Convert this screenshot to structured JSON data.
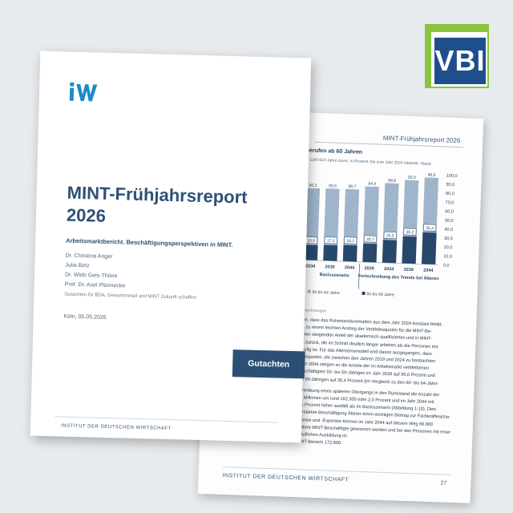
{
  "logo": {
    "text": "VBI",
    "colors": {
      "green": "#8bc53f",
      "blue": "#1f4e8c"
    }
  },
  "front_page": {
    "brand": "iW",
    "title_line1": "MINT-Frühjahrsreport",
    "title_line2": "2026",
    "subtitle": "Arbeitsmarktbericht. Beschäftigungsperspektiven in MINT.",
    "authors": [
      "Dr. Christina Anger",
      "Julia Betz",
      "Dr. Wido Geis-Thöne",
      "Prof. Dr. Axel Plünnecke"
    ],
    "commissioned": "Gutachten für BDA, Gesamtmetall und MINT Zukunft schaffen",
    "date": "Köln, 05.05.2026",
    "badge": "Gutachten",
    "footer": "INSTITUT DER DEUTSCHEN WIRTSCHAFT",
    "colors": {
      "accent": "#2c5075",
      "brand": "#1a8bc7"
    }
  },
  "back_page": {
    "header": "MINT-Frühjahrsreport 2026",
    "chart_title": "berufen ab 60 Jahren",
    "chart_subtitle": "er Zahl fünf Jahre zuvor, in Prozent, bis zum Jahr 2024 Istwerte, Stand",
    "source": "Berechnungen",
    "text_lines": [
      "gen, dass das Ruhestandsverhalten aus dem Jahr 2024 konstant bleibt.",
      "es zu einem leichten Anstieg der Verbleibsquoten für die MINT-Be-",
      "einen steigenden Anteil der akademisch qualifizierten und in MINT-",
      "en zurück, die im Schnitt deutlich länger arbeiten als die Personen mit",
      "häufig ist. Für das Alterseinsmodell wird davon ausgegangen, dass",
      "leibsquoten, die zwischen den Jahren 2019 und 2024 zu beobachten",
      "Jahr 2044 steigen so die Anteile der im Arbeitsmarkt verbleibenen",
      "Beschäftigten 55- bis 59-Jährigen im Jahr 2039 auf 96,6 Prozent und",
      "bis 69-Jährigen auf 35,4 Prozent (im Vergleich zu den 60- bis 64-Jähri-"
    ],
    "text_lines_2": [
      "schreibung eines späteren Übergangs in den Ruhestand die Anzahl der",
      "00 Millionen um rund 162.300 oder 2,0 Prozent und im Jahr 2044 mit",
      "4,1 Prozent höher ausfällt als im Basisszenario (Abbildung 1-10). Dies",
      "Verstärkte Beschäftigung Älterer einen wichtigen Beitrag zur Fachkräftesiche-",
      "ationen und -Expertise können im Jahr 2044 auf diesem Weg 66.800",
      "weitere MINT-Beschäftigte gewonnen werden und bei den Personen mit einer beruflichen Ausbildung im",
      "MINT-Bereich 172.800."
    ],
    "footer": "INSTITUT DER DEUTSCHEN WIRTSCHAFT",
    "page_number": "27"
  },
  "chart_data": {
    "type": "bar",
    "categories": [
      "2034",
      "2039",
      "2044",
      "2029",
      "2034",
      "2039",
      "2044"
    ],
    "group_labels": [
      "Basisszenario",
      "Fortschreibung des Trends bei Älteren"
    ],
    "series": [
      {
        "name": "60 bis 64 Jahre",
        "values": [
          80.3,
          80.5,
          80.7,
          84.4,
          88.8,
          93.0,
          96.6
        ]
      },
      {
        "name": "65 bis 69 Jahre",
        "values": [
          16.9,
          17.5,
          18.2,
          20.7,
          25.5,
          30.2,
          35.4
        ]
      }
    ],
    "value_labels_top": [
      "80,3",
      "80,5",
      "80,7",
      "84,4",
      "88,8",
      "93,0",
      "96,6"
    ],
    "value_labels_bottom": [
      "16,9",
      "17,5",
      "18,2",
      "20,7",
      "25,5",
      "30,2",
      "35,4"
    ],
    "y_ticks": [
      "0,0",
      "10,0",
      "20,0",
      "30,0",
      "40,0",
      "50,0",
      "60,0",
      "70,0",
      "80,0",
      "90,0",
      "100,0"
    ],
    "ylim": [
      0,
      100
    ],
    "colors": {
      "series1": "#9fb5cc",
      "series2": "#27486b"
    }
  }
}
